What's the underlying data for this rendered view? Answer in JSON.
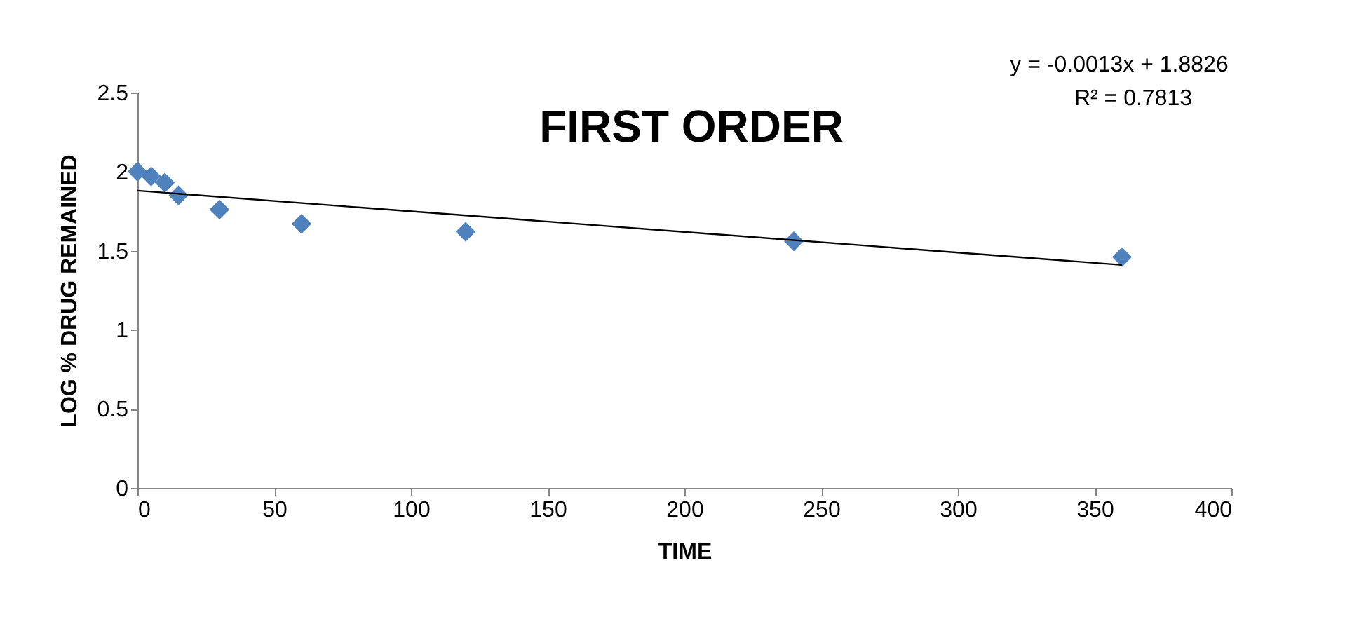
{
  "chart_data": {
    "type": "scatter",
    "title": "FIRST ORDER",
    "xlabel": "TIME",
    "ylabel": "LOG % DRUG REMAINED",
    "x": [
      0,
      5,
      10,
      15,
      30,
      60,
      120,
      240,
      360
    ],
    "series": [
      {
        "color": "#4f81bd",
        "marker": "diamond",
        "values": [
          2.0,
          1.97,
          1.93,
          1.85,
          1.76,
          1.67,
          1.62,
          1.56,
          1.46
        ]
      },
      {
        "type": "line",
        "color": "#000000",
        "x": [
          0,
          360
        ],
        "values": [
          1.88,
          1.41
        ],
        "marker": "none",
        "line_style": "solid"
      }
    ],
    "annotations": [
      "y = -0.0013x + 1.8826",
      "R² = 0.7813"
    ],
    "xlim": [
      0,
      400
    ],
    "xticks": [
      0,
      50,
      100,
      150,
      200,
      250,
      300,
      350,
      400
    ],
    "ylim": [
      0,
      2.5
    ],
    "yticks": [
      0,
      0.5,
      1,
      1.5,
      2,
      2.5
    ],
    "grid": false
  }
}
